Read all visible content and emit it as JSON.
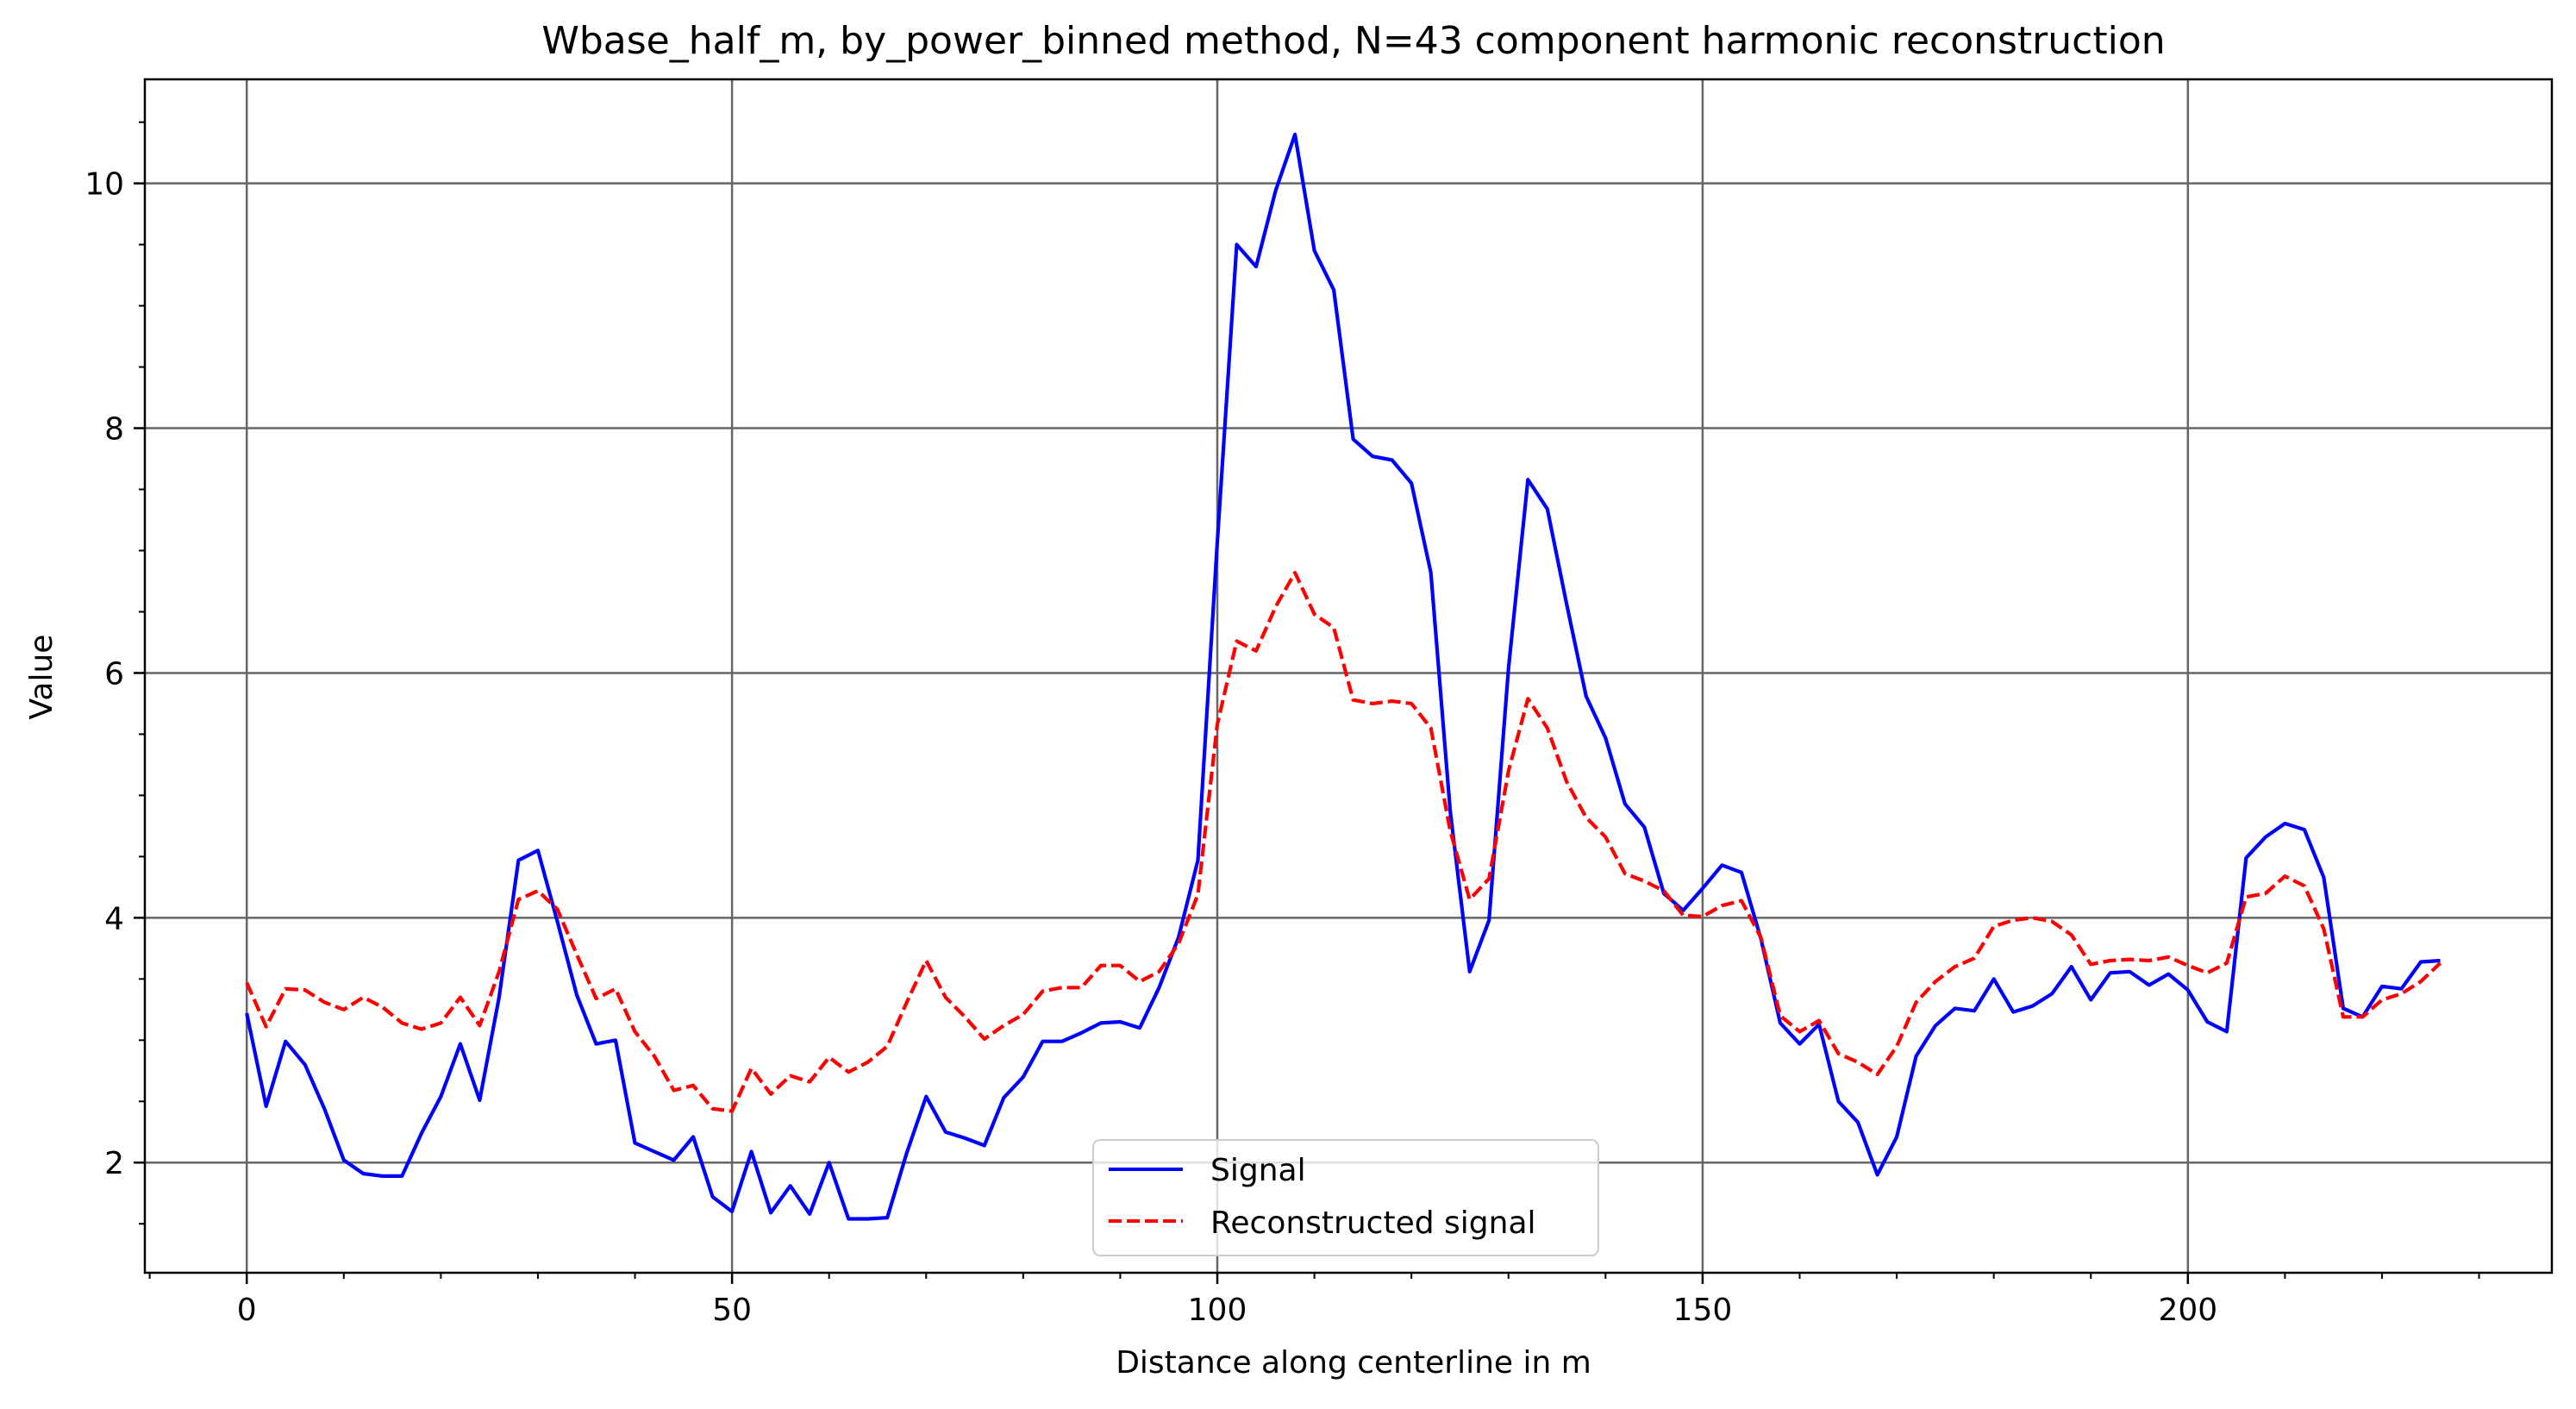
{
  "chart_data": {
    "type": "line",
    "title": "Wbase_half_m, by_power_binned method, N=43 component harmonic reconstruction",
    "xlabel": "Distance along centerline in m",
    "ylabel": "Value",
    "xlim": [
      -10.5,
      237.5
    ],
    "ylim": [
      1.1,
      10.85
    ],
    "xticks": [
      0,
      50,
      100,
      150,
      200
    ],
    "yticks": [
      2,
      4,
      6,
      8,
      10
    ],
    "xtick_labels": [
      "0",
      "50",
      "100",
      "150",
      "200"
    ],
    "ytick_labels": [
      "2",
      "4",
      "6",
      "8",
      "10"
    ],
    "x_minor_step": 10,
    "y_minor_step": 0.5,
    "grid": true,
    "legend_position": "bottom-center",
    "x": [
      0,
      2,
      4,
      6,
      8,
      10,
      12,
      14,
      16,
      18,
      20,
      22,
      24,
      26,
      28,
      30,
      32,
      34,
      36,
      38,
      40,
      42,
      44,
      46,
      48,
      50,
      52,
      54,
      56,
      58,
      60,
      62,
      64,
      66,
      68,
      70,
      72,
      74,
      76,
      78,
      80,
      82,
      84,
      86,
      88,
      90,
      92,
      94,
      96,
      98,
      100,
      102,
      104,
      106,
      108,
      110,
      112,
      114,
      116,
      118,
      120,
      122,
      124,
      126,
      128,
      130,
      132,
      134,
      136,
      138,
      140,
      142,
      144,
      146,
      148,
      150,
      152,
      154,
      156,
      158,
      160,
      162,
      164,
      166,
      168,
      170,
      172,
      174,
      176,
      178,
      180,
      182,
      184,
      186,
      188,
      190,
      192,
      194,
      196,
      198,
      200,
      202,
      204,
      206,
      208,
      210,
      212,
      214,
      216,
      218,
      220,
      222,
      224,
      226
    ],
    "series": [
      {
        "name": "Signal",
        "color": "#0000ff",
        "dash": "solid",
        "values": [
          3.22,
          2.46,
          2.99,
          2.8,
          2.44,
          2.02,
          1.91,
          1.89,
          1.89,
          2.24,
          2.54,
          2.97,
          2.51,
          3.35,
          4.47,
          4.55,
          3.97,
          3.37,
          2.97,
          3.0,
          2.16,
          2.09,
          2.02,
          2.21,
          1.72,
          1.6,
          2.09,
          1.59,
          1.81,
          1.58,
          2.0,
          1.54,
          1.54,
          1.55,
          2.08,
          2.54,
          2.25,
          2.2,
          2.14,
          2.53,
          2.7,
          2.99,
          2.99,
          3.06,
          3.14,
          3.15,
          3.1,
          3.43,
          3.84,
          4.47,
          7.07,
          9.5,
          9.32,
          9.94,
          10.4,
          9.45,
          9.13,
          7.91,
          7.77,
          7.74,
          7.55,
          6.82,
          4.87,
          3.56,
          3.98,
          6.04,
          7.58,
          7.34,
          6.56,
          5.81,
          5.47,
          4.93,
          4.74,
          4.2,
          4.06,
          4.24,
          4.43,
          4.37,
          3.83,
          3.14,
          2.97,
          3.13,
          2.5,
          2.33,
          1.9,
          2.21,
          2.87,
          3.12,
          3.26,
          3.24,
          3.5,
          3.23,
          3.28,
          3.38,
          3.6,
          3.33,
          3.55,
          3.56,
          3.45,
          3.54,
          3.41,
          3.15,
          3.07,
          4.49,
          4.66,
          4.77,
          4.72,
          4.33,
          3.26,
          3.19,
          3.44,
          3.42,
          3.64,
          3.65
        ]
      },
      {
        "name": "Reconstructed signal",
        "color": "#ff0000",
        "dash": "dashed",
        "values": [
          3.47,
          3.11,
          3.42,
          3.41,
          3.31,
          3.25,
          3.35,
          3.27,
          3.14,
          3.09,
          3.14,
          3.35,
          3.12,
          3.56,
          4.15,
          4.22,
          4.07,
          3.7,
          3.34,
          3.42,
          3.07,
          2.87,
          2.59,
          2.63,
          2.44,
          2.42,
          2.77,
          2.56,
          2.71,
          2.66,
          2.86,
          2.74,
          2.82,
          2.95,
          3.31,
          3.65,
          3.35,
          3.19,
          3.01,
          3.12,
          3.21,
          3.4,
          3.43,
          3.43,
          3.61,
          3.61,
          3.48,
          3.56,
          3.79,
          4.19,
          5.58,
          6.26,
          6.18,
          6.54,
          6.82,
          6.48,
          6.37,
          5.78,
          5.75,
          5.77,
          5.75,
          5.55,
          4.71,
          4.15,
          4.32,
          5.2,
          5.79,
          5.55,
          5.11,
          4.82,
          4.66,
          4.36,
          4.3,
          4.22,
          4.02,
          4.01,
          4.1,
          4.14,
          3.84,
          3.2,
          3.07,
          3.16,
          2.89,
          2.82,
          2.72,
          2.95,
          3.31,
          3.48,
          3.6,
          3.67,
          3.93,
          3.98,
          4.0,
          3.97,
          3.86,
          3.62,
          3.65,
          3.66,
          3.65,
          3.68,
          3.61,
          3.55,
          3.63,
          4.17,
          4.2,
          4.34,
          4.26,
          3.91,
          3.19,
          3.19,
          3.33,
          3.38,
          3.48,
          3.63
        ]
      }
    ]
  }
}
